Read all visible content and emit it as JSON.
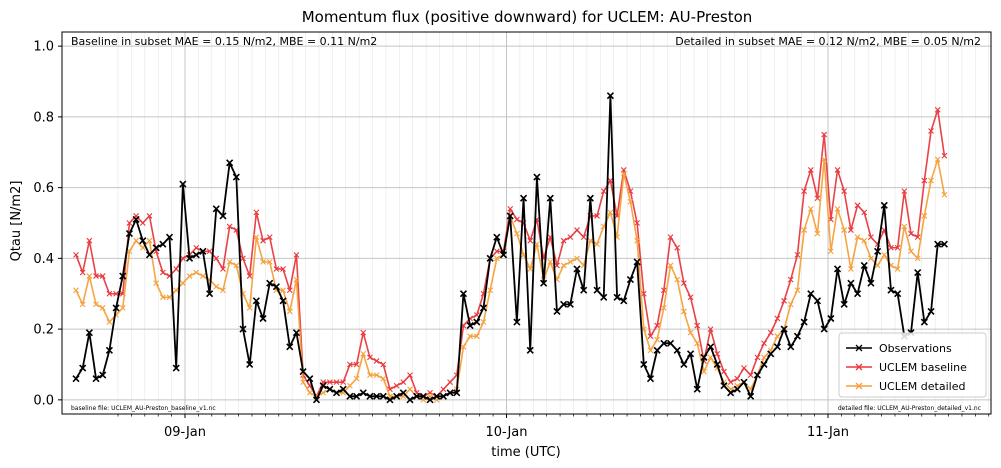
{
  "chart_data": {
    "type": "line",
    "title": "Momentum flux (positive downward) for UCLEM: AU-Preston",
    "xlabel": "time (UTC)",
    "ylabel": "Qtau [N/m2]",
    "ylim": [
      -0.04,
      1.04
    ],
    "yticks": [
      "0.0",
      "0.2",
      "0.4",
      "0.6",
      "0.8",
      "1.0"
    ],
    "xticks": [
      "09-Jan",
      "10-Jan",
      "11-Jan"
    ],
    "grid": true,
    "legend_position": "lower-right",
    "annotations": {
      "top_left": "Baseline in subset MAE = 0.15 N/m2, MBE = 0.11 N/m2",
      "top_right": "Detailed in subset MAE = 0.12 N/m2, MBE = 0.05 N/m2",
      "bottom_left": "baseline file: UCLEM_AU-Preston_baseline_v1.nc",
      "bottom_right": "detailed file: UCLEM_AU-Preston_detailed_v1.nc"
    },
    "series": [
      {
        "name": "Observations",
        "color": "#000000",
        "values": [
          0.06,
          0.09,
          0.19,
          0.06,
          0.07,
          0.14,
          0.26,
          0.35,
          0.47,
          0.51,
          0.45,
          0.41,
          0.43,
          0.44,
          0.46,
          0.09,
          0.61,
          0.4,
          0.41,
          0.42,
          0.3,
          0.54,
          0.52,
          0.67,
          0.63,
          0.2,
          0.1,
          0.28,
          0.23,
          0.33,
          0.32,
          0.28,
          0.15,
          0.19,
          0.08,
          0.06,
          0.0,
          0.04,
          0.03,
          0.02,
          0.03,
          0.01,
          0.01,
          0.02,
          0.01,
          0.01,
          0.01,
          0.0,
          0.01,
          0.02,
          0.0,
          0.01,
          0.01,
          0.0,
          0.01,
          0.01,
          0.02,
          0.02,
          0.3,
          0.21,
          0.22,
          0.26,
          0.4,
          0.46,
          0.41,
          0.52,
          0.22,
          0.57,
          0.14,
          0.63,
          0.33,
          0.57,
          0.25,
          0.27,
          0.27,
          0.37,
          0.31,
          0.57,
          0.31,
          0.29,
          0.86,
          0.29,
          0.28,
          0.34,
          0.39,
          0.1,
          0.06,
          0.14,
          0.16,
          0.16,
          0.14,
          0.1,
          0.13,
          0.03,
          0.12,
          0.15,
          0.1,
          0.04,
          0.02,
          0.03,
          0.05,
          0.01,
          0.07,
          0.1,
          0.13,
          0.15,
          0.2,
          0.15,
          0.18,
          0.22,
          0.3,
          0.28,
          0.2,
          0.23,
          0.37,
          0.27,
          0.33,
          0.3,
          0.38,
          0.33,
          0.42,
          0.55,
          0.31,
          0.3,
          0.18,
          0.19,
          0.36,
          0.22,
          0.25,
          0.44,
          0.44
        ]
      },
      {
        "name": "UCLEM baseline",
        "color": "#e8383d",
        "values": [
          0.41,
          0.36,
          0.45,
          0.35,
          0.35,
          0.3,
          0.3,
          0.3,
          0.5,
          0.52,
          0.5,
          0.52,
          0.42,
          0.36,
          0.35,
          0.37,
          0.4,
          0.41,
          0.43,
          0.42,
          0.42,
          0.4,
          0.37,
          0.49,
          0.48,
          0.4,
          0.35,
          0.53,
          0.45,
          0.46,
          0.37,
          0.37,
          0.31,
          0.41,
          0.07,
          0.04,
          0.01,
          0.05,
          0.05,
          0.05,
          0.05,
          0.1,
          0.1,
          0.19,
          0.12,
          0.11,
          0.1,
          0.03,
          0.04,
          0.05,
          0.07,
          0.02,
          0.01,
          0.02,
          0.01,
          0.03,
          0.05,
          0.07,
          0.21,
          0.23,
          0.24,
          0.3,
          0.4,
          0.42,
          0.42,
          0.54,
          0.51,
          0.5,
          0.45,
          0.51,
          0.4,
          0.46,
          0.38,
          0.45,
          0.46,
          0.48,
          0.46,
          0.52,
          0.52,
          0.59,
          0.62,
          0.52,
          0.65,
          0.59,
          0.5,
          0.3,
          0.18,
          0.21,
          0.31,
          0.46,
          0.43,
          0.33,
          0.29,
          0.21,
          0.11,
          0.2,
          0.13,
          0.08,
          0.05,
          0.06,
          0.09,
          0.07,
          0.12,
          0.16,
          0.19,
          0.23,
          0.28,
          0.34,
          0.41,
          0.59,
          0.65,
          0.57,
          0.75,
          0.51,
          0.65,
          0.59,
          0.48,
          0.55,
          0.53,
          0.46,
          0.44,
          0.48,
          0.43,
          0.43,
          0.59,
          0.47,
          0.46,
          0.62,
          0.76,
          0.82,
          0.69
        ]
      },
      {
        "name": "UCLEM detailed",
        "color": "#f5a03a",
        "values": [
          0.31,
          0.27,
          0.35,
          0.27,
          0.26,
          0.22,
          0.24,
          0.26,
          0.42,
          0.45,
          0.43,
          0.45,
          0.33,
          0.29,
          0.29,
          0.31,
          0.33,
          0.35,
          0.36,
          0.35,
          0.34,
          0.32,
          0.31,
          0.39,
          0.38,
          0.3,
          0.26,
          0.46,
          0.39,
          0.39,
          0.31,
          0.31,
          0.25,
          0.34,
          0.05,
          0.02,
          0.01,
          0.02,
          0.03,
          0.02,
          0.02,
          0.04,
          0.06,
          0.13,
          0.07,
          0.07,
          0.06,
          0.01,
          0.01,
          0.01,
          0.03,
          0.01,
          0.0,
          0.01,
          0.0,
          0.01,
          0.02,
          0.03,
          0.15,
          0.18,
          0.18,
          0.22,
          0.31,
          0.4,
          0.41,
          0.52,
          0.47,
          0.41,
          0.37,
          0.44,
          0.34,
          0.39,
          0.34,
          0.38,
          0.39,
          0.4,
          0.38,
          0.45,
          0.44,
          0.49,
          0.53,
          0.46,
          0.64,
          0.56,
          0.45,
          0.2,
          0.14,
          0.17,
          0.26,
          0.38,
          0.34,
          0.25,
          0.19,
          0.16,
          0.08,
          0.12,
          0.09,
          0.05,
          0.03,
          0.04,
          0.05,
          0.03,
          0.07,
          0.12,
          0.14,
          0.18,
          0.2,
          0.27,
          0.31,
          0.48,
          0.54,
          0.47,
          0.68,
          0.42,
          0.54,
          0.48,
          0.37,
          0.46,
          0.45,
          0.4,
          0.38,
          0.41,
          0.38,
          0.37,
          0.49,
          0.42,
          0.4,
          0.52,
          0.62,
          0.68,
          0.58
        ]
      }
    ]
  }
}
